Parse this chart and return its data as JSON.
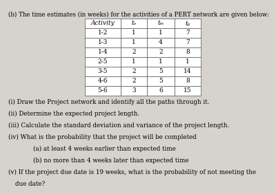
{
  "title": "(b) The time estimates (in weeks) for the activities of a PERT network are given below:",
  "table_headers": [
    "Activity",
    "tₒ",
    "tₘ",
    "tₚ"
  ],
  "table_rows": [
    [
      "1-2",
      "1",
      "1",
      "7"
    ],
    [
      "1-3",
      "1",
      "4",
      "7"
    ],
    [
      "1-4",
      "2",
      "2",
      "8"
    ],
    [
      "2-5",
      "1",
      "1",
      "1"
    ],
    [
      "3-5",
      "2",
      "5",
      "14"
    ],
    [
      "4-6",
      "2",
      "5",
      "8"
    ],
    [
      "5-6",
      "3",
      "6",
      "15"
    ]
  ],
  "questions": [
    "(i) Draw the Project network and identify all the paths through it.",
    "(ii) Determine the expected project length.",
    "(iii) Calculate the standard deviation and variance of the project length.",
    "(iv) What is the probability that the project will be completed",
    "(a) at least 4 weeks earlier than expected time",
    "(b) no more than 4 weeks later than expected time",
    "(v) If the project due date is 19 weeks, what is the probability of not meeting the\n    due date?"
  ],
  "bg_color": "#d6d2cc",
  "font_size_title": 6.2,
  "font_size_table_header": 6.5,
  "font_size_table": 6.5,
  "font_size_questions": 6.3
}
